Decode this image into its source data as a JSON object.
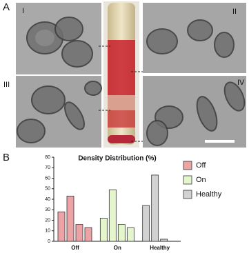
{
  "panel_labels": {
    "a": "A",
    "b": "B"
  },
  "micrograph_labels": [
    "I",
    "II",
    "III",
    "IV"
  ],
  "chart_data": {
    "type": "bar",
    "title": "Density Distribution (%)",
    "series": [
      {
        "name": "Off",
        "color": "#eba3a6",
        "values": [
          28,
          43,
          16,
          13
        ]
      },
      {
        "name": "On",
        "color": "#e6f6cc",
        "values": [
          22,
          49,
          16,
          13
        ]
      },
      {
        "name": "Healthy",
        "color": "#d2d2d2",
        "values": [
          34,
          63,
          2
        ]
      }
    ],
    "ylim": [
      0,
      80
    ],
    "yticks": [
      0,
      10,
      20,
      30,
      40,
      50,
      60,
      70,
      80
    ],
    "legend": "right"
  }
}
